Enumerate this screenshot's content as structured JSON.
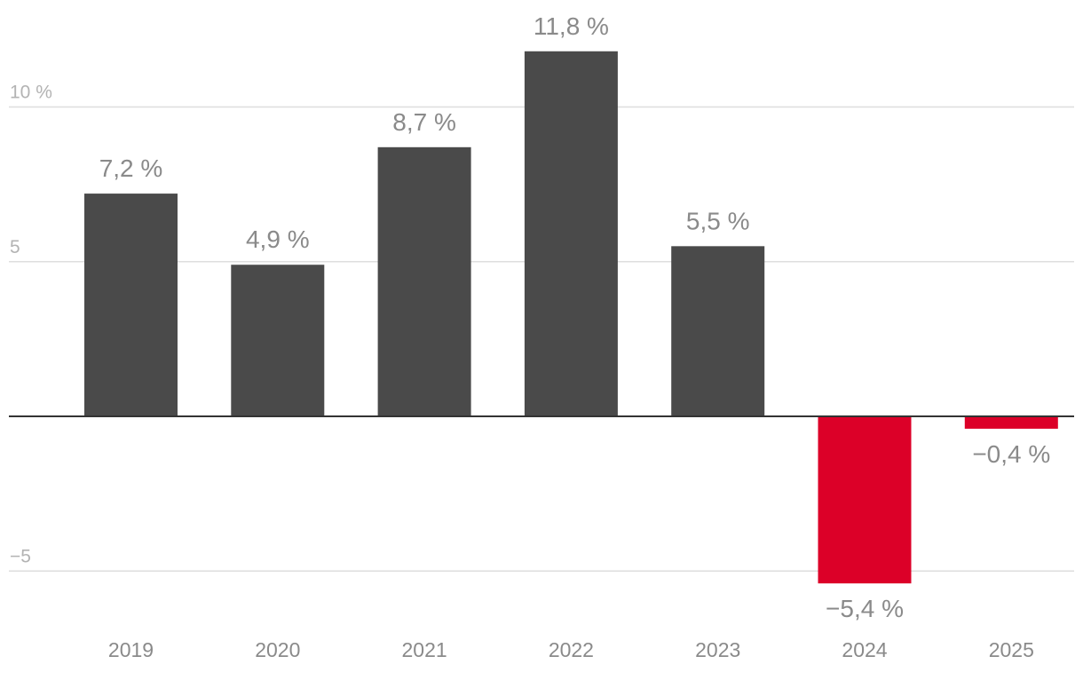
{
  "chart_data": {
    "type": "bar",
    "title": "",
    "xlabel": "",
    "ylabel": "",
    "categories": [
      "2019",
      "2020",
      "2021",
      "2022",
      "2023",
      "2024",
      "2025"
    ],
    "values": [
      7.2,
      4.9,
      8.7,
      11.8,
      5.5,
      -5.4,
      -0.4
    ],
    "data_labels": [
      "7,2 %",
      "4,9 %",
      "8,7 %",
      "11,8 %",
      "5,5 %",
      "−5,4 %",
      "−0,4 %"
    ],
    "ylim": [
      -5.7,
      12.4
    ],
    "yticks": [
      {
        "value": 10,
        "label": "10 %"
      },
      {
        "value": 5,
        "label": "5"
      },
      {
        "value": -5,
        "label": "−5"
      }
    ],
    "grid": true,
    "legend": "none",
    "colors": {
      "positive": "#4a4a4a",
      "negative": "#dc0028"
    }
  }
}
